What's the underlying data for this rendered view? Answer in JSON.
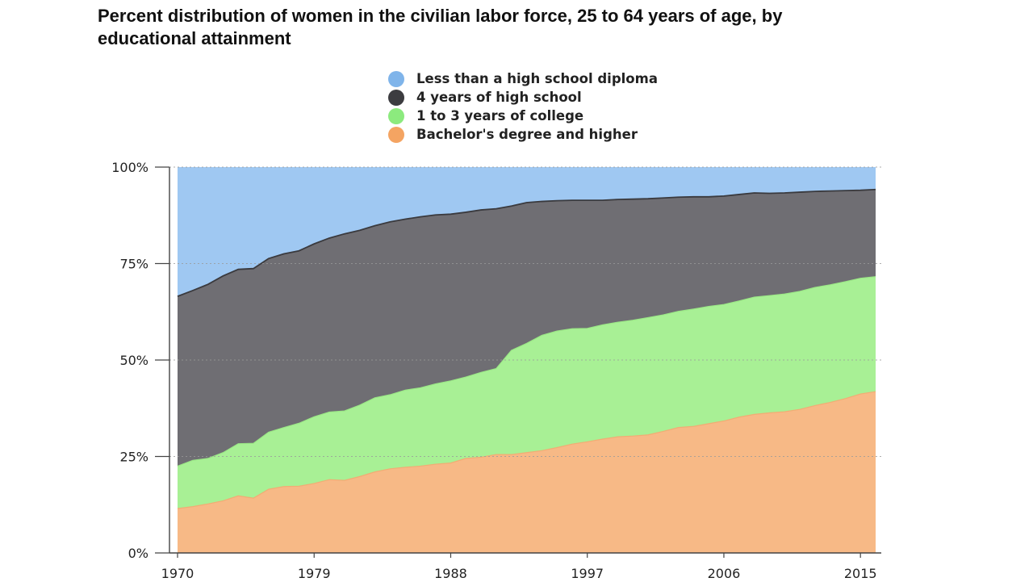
{
  "chart_data": {
    "type": "area",
    "stacked": true,
    "title": "Percent distribution of women in the civilian labor force, 25 to 64 years of age, by educational attainment",
    "xlabel": "",
    "ylabel": "",
    "ylim": [
      0,
      100
    ],
    "xlim": [
      1970,
      2016
    ],
    "x_tick_labels": [
      "1970",
      "1979",
      "1988",
      "1997",
      "2006",
      "2015"
    ],
    "y_tick_labels": [
      "0%",
      "25%",
      "50%",
      "75%",
      "100%"
    ],
    "legend_position": "top",
    "grid": true,
    "x": [
      1970,
      1971,
      1972,
      1973,
      1974,
      1975,
      1976,
      1977,
      1978,
      1979,
      1980,
      1981,
      1982,
      1983,
      1984,
      1985,
      1986,
      1987,
      1988,
      1989,
      1990,
      1991,
      1992,
      1993,
      1994,
      1995,
      1996,
      1997,
      1998,
      1999,
      2000,
      2001,
      2002,
      2003,
      2004,
      2005,
      2006,
      2007,
      2008,
      2009,
      2010,
      2011,
      2012,
      2013,
      2014,
      2015,
      2016
    ],
    "series": [
      {
        "name": "Bachelor's degree and higher",
        "color": "#f7b986",
        "values": [
          11.5,
          12,
          12.7,
          13.5,
          14.8,
          14.2,
          16.5,
          17.2,
          17.3,
          18,
          19,
          18.8,
          19.8,
          21,
          21.8,
          22.2,
          22.5,
          23,
          23.3,
          24.5,
          24.8,
          25.5,
          25.5,
          26,
          26.5,
          27.3,
          28.2,
          28.8,
          29.5,
          30.1,
          30.3,
          30.6,
          31.5,
          32.5,
          32.8,
          33.5,
          34.2,
          35.2,
          35.9,
          36.3,
          36.6,
          37.2,
          38.2,
          39,
          40,
          41.2,
          41.8
        ]
      },
      {
        "name": "1 to 3 years of college",
        "color": "#a8f095",
        "values": [
          22.5,
          24,
          24.5,
          26,
          28.3,
          28.4,
          31.3,
          32.5,
          33.6,
          35.3,
          36.5,
          36.8,
          38.3,
          40.2,
          41,
          42.2,
          42.8,
          43.8,
          44.6,
          45.6,
          46.8,
          47.8,
          52.5,
          54.3,
          56.4,
          57.5,
          58.1,
          58.2,
          59.1,
          59.8,
          60.3,
          61,
          61.7,
          62.6,
          63.2,
          63.9,
          64.4,
          65.3,
          66.3,
          66.7,
          67.1,
          67.8,
          68.8,
          69.5,
          70.3,
          71.2,
          71.6
        ]
      },
      {
        "name": "4 years of high school",
        "color": "#6f6e73",
        "values": [
          66.5,
          68,
          69.6,
          71.8,
          73.5,
          73.7,
          76.3,
          77.5,
          78.3,
          80.1,
          81.6,
          82.7,
          83.6,
          84.8,
          85.8,
          86.5,
          87.1,
          87.6,
          87.8,
          88.3,
          88.9,
          89.2,
          89.9,
          90.8,
          91.1,
          91.3,
          91.4,
          91.4,
          91.4,
          91.6,
          91.7,
          91.8,
          92,
          92.2,
          92.3,
          92.3,
          92.5,
          92.9,
          93.3,
          93.2,
          93.3,
          93.5,
          93.7,
          93.8,
          93.9,
          94,
          94.2
        ]
      },
      {
        "name": "Less than a high school diploma",
        "color": "#9fc8f2",
        "values": [
          100,
          100,
          100,
          100,
          100,
          100,
          100,
          100,
          100,
          100,
          100,
          100,
          100,
          100,
          100,
          100,
          100,
          100,
          100,
          100,
          100,
          100,
          100,
          100,
          100,
          100,
          100,
          100,
          100,
          100,
          100,
          100,
          100,
          100,
          100,
          100,
          100,
          100,
          100,
          100,
          100,
          100,
          100,
          100,
          100,
          100,
          100
        ]
      }
    ],
    "legend": [
      {
        "label": "Less than a high school diploma",
        "color": "#7fb4ea"
      },
      {
        "label": "4 years of high school",
        "color": "#3c3c40"
      },
      {
        "label": "1 to 3 years of college",
        "color": "#8cea7e"
      },
      {
        "label": "Bachelor's degree and higher",
        "color": "#f4a462"
      }
    ]
  }
}
